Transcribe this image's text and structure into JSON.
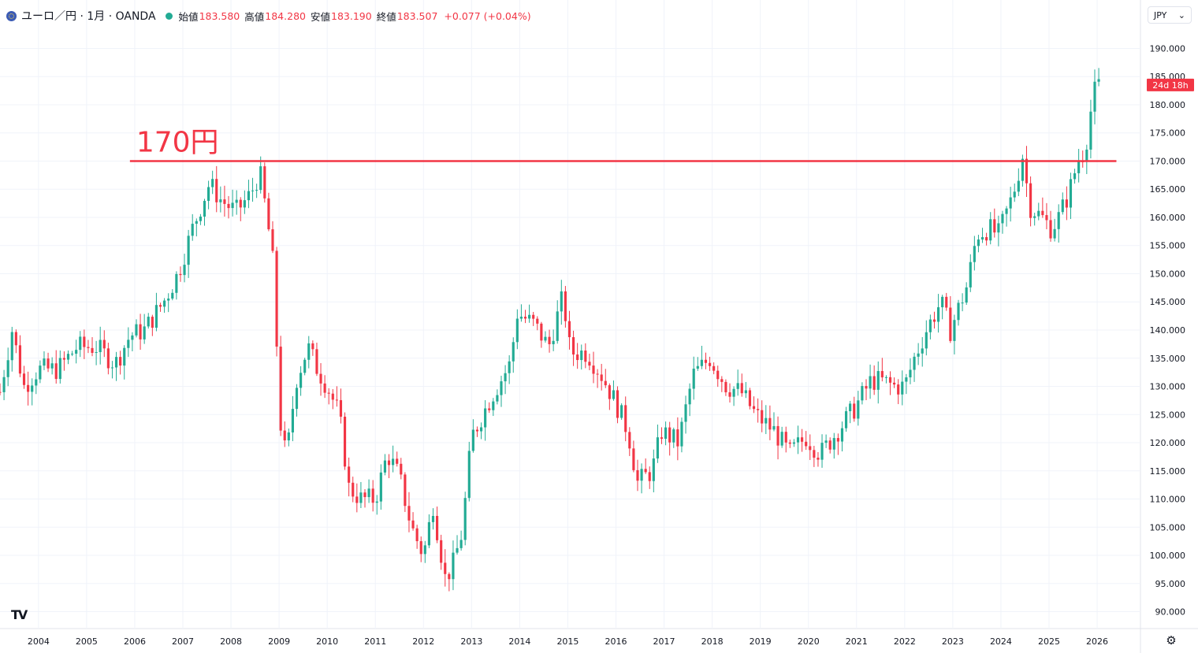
{
  "header": {
    "symbol": "ユーロ／円 · 1月 · OANDA",
    "open_label": "始値",
    "open": "183.580",
    "high_label": "高値",
    "high": "184.280",
    "low_label": "安値",
    "low": "183.190",
    "close_label": "終値",
    "close": "183.507",
    "change": "+0.077 (+0.04%)",
    "currency": "JPY"
  },
  "colors": {
    "up": "#22ab94",
    "down": "#f23645",
    "accent": "#f23645",
    "grid": "#f0f3fa",
    "text": "#131722"
  },
  "icons": {
    "flag": "eu-jp-flag-icon",
    "status": "market-status-icon",
    "dropdown": "chevron-down-icon",
    "logo": "tradingview-logo-icon",
    "settings": "gear-icon"
  },
  "chart_data": {
    "type": "candlestick",
    "title": "ユーロ／円 · 1月 · OANDA",
    "interval": "monthly",
    "ylim": [
      87,
      193
    ],
    "xlim": [
      2003.2,
      2026.9
    ],
    "y_ticks": [
      "190.000",
      "185.000",
      "180.000",
      "175.000",
      "170.000",
      "165.000",
      "160.000",
      "155.000",
      "150.000",
      "145.000",
      "140.000",
      "135.000",
      "130.000",
      "125.000",
      "120.000",
      "115.000",
      "110.000",
      "105.000",
      "100.000",
      "95.000",
      "90.000"
    ],
    "x_ticks": [
      "2004",
      "2005",
      "2006",
      "2007",
      "2008",
      "2009",
      "2010",
      "2011",
      "2012",
      "2013",
      "2014",
      "2015",
      "2016",
      "2017",
      "2018",
      "2019",
      "2020",
      "2021",
      "2022",
      "2023",
      "2024",
      "2025",
      "2026"
    ],
    "horizontal_line": {
      "value": 170,
      "label": "170円",
      "from": 2005.9,
      "to": 2026.4
    },
    "countdown_label": "24d 18h",
    "countdown_value": 183.5,
    "anchors": [
      [
        2003.2,
        129
      ],
      [
        2003.45,
        140
      ],
      [
        2003.7,
        130
      ],
      [
        2004.0,
        133
      ],
      [
        2004.4,
        133
      ],
      [
        2004.8,
        137
      ],
      [
        2005.2,
        137
      ],
      [
        2005.6,
        134
      ],
      [
        2005.9,
        139
      ],
      [
        2006.2,
        140
      ],
      [
        2006.6,
        145
      ],
      [
        2006.9,
        150
      ],
      [
        2007.2,
        158
      ],
      [
        2007.55,
        166
      ],
      [
        2007.8,
        163
      ],
      [
        2008.1,
        161
      ],
      [
        2008.4,
        164
      ],
      [
        2008.6,
        168
      ],
      [
        2008.75,
        160
      ],
      [
        2008.9,
        150
      ],
      [
        2009.0,
        125
      ],
      [
        2009.15,
        117
      ],
      [
        2009.35,
        131
      ],
      [
        2009.6,
        137
      ],
      [
        2009.8,
        133
      ],
      [
        2010.0,
        130
      ],
      [
        2010.25,
        125
      ],
      [
        2010.45,
        112
      ],
      [
        2010.7,
        110
      ],
      [
        2011.0,
        110
      ],
      [
        2011.25,
        118
      ],
      [
        2011.5,
        114
      ],
      [
        2011.75,
        105
      ],
      [
        2012.0,
        100
      ],
      [
        2012.2,
        109
      ],
      [
        2012.45,
        96
      ],
      [
        2012.6,
        98
      ],
      [
        2012.8,
        104
      ],
      [
        2013.0,
        121
      ],
      [
        2013.4,
        128
      ],
      [
        2013.8,
        134
      ],
      [
        2013.95,
        143
      ],
      [
        2014.3,
        141
      ],
      [
        2014.6,
        137
      ],
      [
        2014.9,
        146
      ],
      [
        2015.05,
        136
      ],
      [
        2015.4,
        136
      ],
      [
        2015.7,
        132
      ],
      [
        2016.0,
        127
      ],
      [
        2016.25,
        122
      ],
      [
        2016.45,
        113
      ],
      [
        2016.75,
        115
      ],
      [
        2016.95,
        122
      ],
      [
        2017.3,
        120
      ],
      [
        2017.6,
        132
      ],
      [
        2017.95,
        135
      ],
      [
        2018.3,
        130
      ],
      [
        2018.6,
        129
      ],
      [
        2018.9,
        125
      ],
      [
        2019.3,
        122
      ],
      [
        2019.6,
        118
      ],
      [
        2019.95,
        121
      ],
      [
        2020.25,
        118
      ],
      [
        2020.6,
        122
      ],
      [
        2020.95,
        126
      ],
      [
        2021.3,
        131
      ],
      [
        2021.5,
        131
      ],
      [
        2021.8,
        130
      ],
      [
        2022.0,
        130
      ],
      [
        2022.2,
        135
      ],
      [
        2022.45,
        140
      ],
      [
        2022.75,
        145
      ],
      [
        2022.95,
        140
      ],
      [
        2023.3,
        148
      ],
      [
        2023.5,
        157
      ],
      [
        2023.75,
        158
      ],
      [
        2023.95,
        157
      ],
      [
        2024.25,
        164
      ],
      [
        2024.45,
        171
      ],
      [
        2024.6,
        162
      ],
      [
        2024.85,
        160
      ],
      [
        2025.05,
        158
      ],
      [
        2025.2,
        160
      ],
      [
        2025.4,
        164
      ],
      [
        2025.6,
        170
      ],
      [
        2025.75,
        172
      ],
      [
        2025.92,
        182
      ],
      [
        2026.05,
        183.5
      ]
    ]
  }
}
